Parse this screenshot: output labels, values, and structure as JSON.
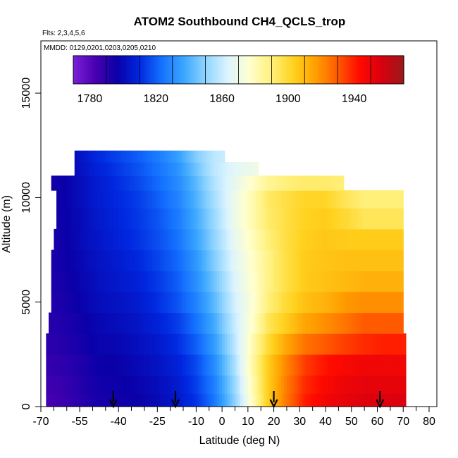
{
  "chart_data": {
    "type": "heatmap",
    "title": "ATOM2 Southbound CH4_QCLS_trop",
    "flights_note": "Flts: 2,3,4,5,6",
    "dates_note": "MMDD: 0129,0201,0203,0205,0210",
    "xlabel": "Latitude (deg N)",
    "ylabel": "Altitude (m)",
    "xlim": [
      -70,
      83
    ],
    "ylim": [
      0,
      17500
    ],
    "x_ticks": [
      -70,
      -55,
      -40,
      -25,
      -10,
      0,
      10,
      20,
      30,
      40,
      50,
      60,
      70,
      80
    ],
    "x_minor_ticks": [
      -65,
      -60,
      -50,
      -45,
      -35,
      -30,
      -20,
      -15,
      -5,
      5,
      15,
      25,
      35,
      45,
      55,
      65,
      75
    ],
    "y_ticks": [
      0,
      5000,
      10000,
      15000
    ],
    "colorbar": {
      "tick_labels": [
        "1780",
        "1820",
        "1860",
        "1900",
        "1940"
      ],
      "tick_values": [
        1780,
        1820,
        1860,
        1900,
        1940
      ],
      "range": [
        1770,
        1970
      ],
      "colors": [
        "#7a1fd8",
        "#4a00b0",
        "#0a00a8",
        "#0028e0",
        "#1470ff",
        "#3aa6ff",
        "#8fd4ff",
        "#dcf4ff",
        "#ffffd0",
        "#fff07a",
        "#ffd21e",
        "#ff9f00",
        "#ff5a00",
        "#ff0a00",
        "#d80010",
        "#9a1a1a"
      ]
    },
    "field": {
      "description": "CH4 mixing ratio (ppb) by latitude band and altitude",
      "latitude": [
        -67,
        -62,
        -55,
        -48,
        -40,
        -32,
        -25,
        -17,
        -10,
        -3,
        5,
        12,
        18,
        25,
        32,
        40,
        48,
        55,
        62,
        70
      ],
      "altitude": [
        250,
        1000,
        2000,
        3000,
        4000,
        5000,
        6000,
        7000,
        8000,
        9000,
        10000,
        10700,
        11400,
        12000
      ],
      "ch4": [
        [
          1784,
          1786,
          1790,
          1794,
          1795,
          1797,
          1800,
          1805,
          1812,
          1825,
          1850,
          1880,
          1905,
          1925,
          1940,
          1948,
          1952,
          1955,
          1955,
          1955
        ],
        [
          1786,
          1787,
          1791,
          1795,
          1796,
          1798,
          1801,
          1806,
          1814,
          1827,
          1852,
          1882,
          1905,
          1924,
          1938,
          1945,
          1950,
          1952,
          1952,
          1952
        ],
        [
          1788,
          1789,
          1792,
          1796,
          1797,
          1800,
          1803,
          1808,
          1816,
          1830,
          1855,
          1884,
          1905,
          1922,
          1935,
          1942,
          1946,
          1948,
          1948,
          1948
        ],
        [
          1790,
          1791,
          1794,
          1798,
          1799,
          1802,
          1805,
          1811,
          1820,
          1834,
          1858,
          1882,
          1900,
          1915,
          1925,
          1930,
          1935,
          1938,
          1940,
          1940
        ],
        [
          1791,
          1792,
          1795,
          1799,
          1801,
          1804,
          1808,
          1814,
          1824,
          1838,
          1860,
          1878,
          1895,
          1905,
          1915,
          1920,
          1925,
          1930,
          1930,
          1930
        ],
        [
          1792,
          1793,
          1797,
          1801,
          1803,
          1806,
          1811,
          1818,
          1828,
          1842,
          1862,
          1876,
          1890,
          1900,
          1908,
          1912,
          1918,
          1920,
          1920,
          1920
        ],
        [
          1793,
          1794,
          1798,
          1802,
          1805,
          1808,
          1813,
          1820,
          1831,
          1845,
          1864,
          1877,
          1888,
          1898,
          1905,
          1908,
          1910,
          1912,
          1912,
          1912
        ],
        [
          1793,
          1795,
          1799,
          1803,
          1806,
          1810,
          1815,
          1822,
          1833,
          1848,
          1866,
          1878,
          1888,
          1898,
          1905,
          1907,
          1908,
          1908,
          1908,
          1908
        ],
        [
          1794,
          1795,
          1800,
          1804,
          1808,
          1812,
          1817,
          1824,
          1836,
          1850,
          1868,
          1880,
          1890,
          1898,
          1904,
          1906,
          1905,
          1905,
          1905,
          1905
        ],
        [
          1795,
          1796,
          1800,
          1805,
          1809,
          1813,
          1818,
          1826,
          1838,
          1852,
          1870,
          1882,
          1892,
          1898,
          1903,
          1905,
          1900,
          1895,
          1895,
          1895
        ],
        [
          1795,
          1796,
          1801,
          1806,
          1810,
          1814,
          1820,
          1828,
          1840,
          1854,
          1870,
          1882,
          1893,
          1898,
          1902,
          1902,
          1895,
          1890,
          1890,
          1890
        ],
        [
          1795,
          1796,
          1801,
          1806,
          1811,
          1816,
          1822,
          1830,
          1842,
          1856,
          1868,
          1878,
          1886,
          1890,
          1892,
          1892,
          1890,
          1888,
          1888,
          1888
        ],
        [
          1796,
          1797,
          1802,
          1808,
          1813,
          1818,
          1824,
          1832,
          1845,
          1858,
          1866,
          1870,
          1875,
          1880,
          1880,
          1880,
          1880,
          1880,
          1880,
          1880
        ],
        [
          1796,
          1797,
          1803,
          1810,
          1815,
          1820,
          1826,
          1835,
          1848,
          1858,
          1862,
          1862,
          1862,
          1862,
          1862,
          1862,
          1862,
          1862,
          1862,
          1862
        ]
      ],
      "lat_extent_by_altitude": [
        [
          -68,
          71
        ],
        [
          -68,
          71
        ],
        [
          -68,
          71
        ],
        [
          -68,
          71
        ],
        [
          -67,
          70
        ],
        [
          -66,
          70
        ],
        [
          -66,
          70
        ],
        [
          -66,
          70
        ],
        [
          -65,
          70
        ],
        [
          -64,
          70
        ],
        [
          -64,
          70
        ],
        [
          -66,
          47
        ],
        [
          -57,
          14
        ],
        [
          -57,
          1
        ]
      ]
    },
    "arrows_latitude": [
      -42,
      -18,
      20,
      61
    ]
  }
}
